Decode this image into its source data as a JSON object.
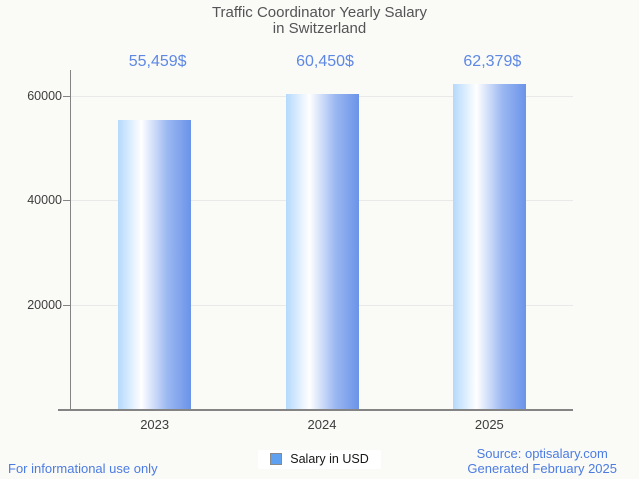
{
  "title": {
    "line1": "Traffic Coordinator Yearly Salary",
    "line2": "in Switzerland"
  },
  "chart_data": {
    "type": "bar",
    "categories": [
      "2023",
      "2024",
      "2025"
    ],
    "values": [
      55459,
      60450,
      62379
    ],
    "value_labels": [
      "55,459$",
      "60,450$",
      "62,379$"
    ],
    "title": "Traffic Coordinator Yearly Salary in Switzerland",
    "xlabel": "",
    "ylabel": "",
    "ylim": [
      0,
      65000
    ],
    "yticks": [
      20000,
      40000,
      60000
    ],
    "ytick_labels": [
      "20000",
      "40000",
      "60000"
    ],
    "grid": true,
    "legend_position": "bottom",
    "series_name": "Salary in USD"
  },
  "legend": {
    "label": "Salary in USD"
  },
  "footer": {
    "left": "For informational use only",
    "source": "Source: optisalary.com",
    "generated": "Generated February 2025"
  },
  "colors": {
    "background": "#fafaf7",
    "title_text": "#545456",
    "tick_text": "#3d3d3d",
    "axis": "#848484",
    "gridline": "#e9e9e9",
    "value_label_text": "#5e88e4",
    "footer_text": "#4c7ce2",
    "bar_gradient_left": "#b4d9fc",
    "bar_gradient_mid": "#ffffff",
    "bar_gradient_right": "#6b93e9",
    "legend_square_fill": "#60a0f0",
    "legend_square_border": "#8a8a8a"
  }
}
